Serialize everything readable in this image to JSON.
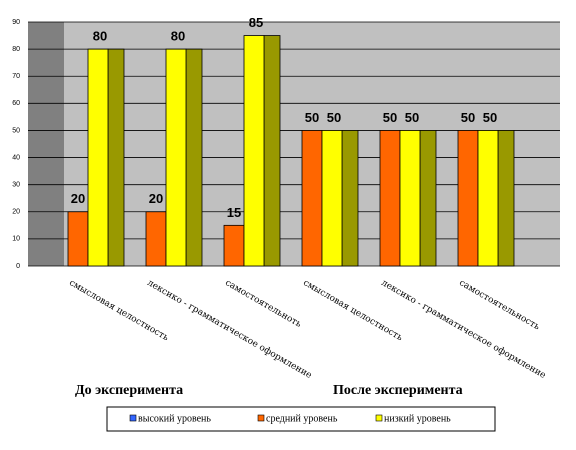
{
  "chart_data": {
    "type": "bar",
    "categories": [
      "смысловая целостность",
      "лексико - грамматическое оформление",
      "самостоятельноть",
      "смысловая целостность",
      "лексико - грамматическое оформление",
      "самостоятельность"
    ],
    "group_labels": [
      "До эксперимента",
      "После эксперимента"
    ],
    "series": [
      {
        "name": "высокий уровень",
        "color": "#3366ff",
        "values": [
          0,
          0,
          0,
          0,
          0,
          0
        ]
      },
      {
        "name": "средний уровень",
        "color": "#ff6600",
        "values": [
          20,
          20,
          15,
          50,
          50,
          50
        ]
      },
      {
        "name": "низкий уровень",
        "color": "#ffff00",
        "values": [
          80,
          80,
          85,
          50,
          50,
          50
        ]
      }
    ],
    "ylim": [
      0,
      90
    ],
    "yticks": [
      0,
      10,
      20,
      30,
      40,
      50,
      60,
      70,
      80,
      90
    ],
    "grid": true,
    "legend": "bottom"
  }
}
